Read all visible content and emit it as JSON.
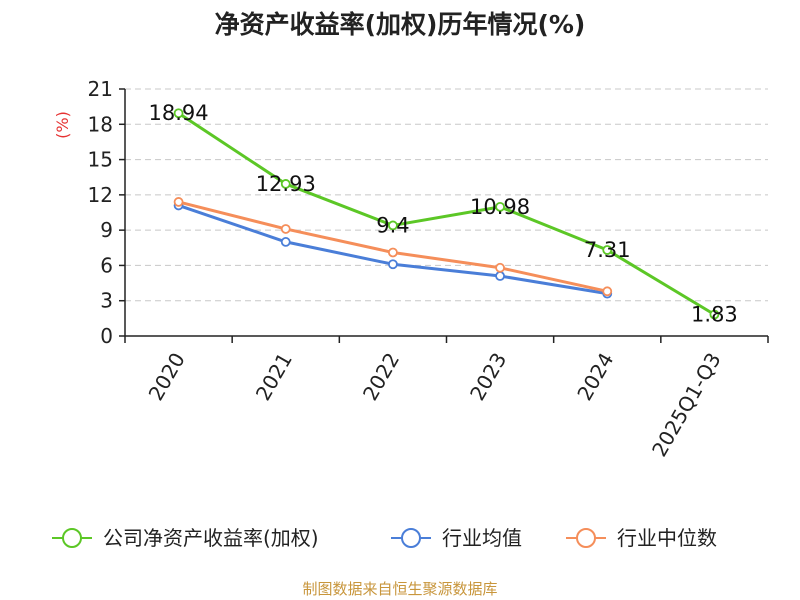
{
  "chart_data": {
    "type": "line",
    "title": "净资产收益率(加权)历年情况(%)",
    "ylabel": "(%)",
    "xlabel": "",
    "categories": [
      "2020",
      "2021",
      "2022",
      "2023",
      "2024",
      "2025Q1-Q3"
    ],
    "ylim": [
      0,
      21
    ],
    "yticks": [
      0,
      3,
      6,
      9,
      12,
      15,
      18,
      21
    ],
    "grid": true,
    "legend_position": "bottom",
    "series": [
      {
        "name": "公司净资产收益率(加权)",
        "color": "#5cc726",
        "values": [
          18.94,
          12.93,
          9.4,
          10.98,
          7.31,
          1.83
        ],
        "labels": [
          "18.94",
          "12.93",
          "9.4",
          "10.98",
          "7.31",
          "1.83"
        ]
      },
      {
        "name": "行业均值",
        "color": "#4a7ed8",
        "values": [
          11.1,
          8.0,
          6.1,
          5.1,
          3.6,
          null
        ]
      },
      {
        "name": "行业中位数",
        "color": "#f58e5a",
        "values": [
          11.4,
          9.1,
          7.1,
          5.8,
          3.8,
          null
        ]
      }
    ]
  },
  "source": "制图数据来自恒生聚源数据库"
}
